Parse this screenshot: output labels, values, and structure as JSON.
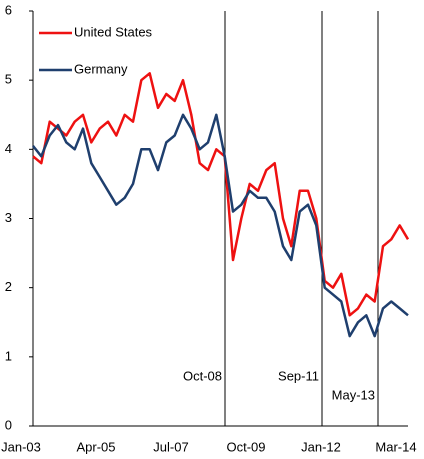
{
  "chart_data": {
    "type": "line",
    "categories": [
      "Jan-03",
      null,
      null,
      null,
      null,
      null,
      null,
      null,
      null,
      "Apr-05",
      null,
      null,
      null,
      null,
      null,
      null,
      null,
      null,
      "Jul-07",
      null,
      null,
      null,
      null,
      null,
      null,
      null,
      null,
      "Oct-09",
      null,
      null,
      null,
      null,
      null,
      null,
      null,
      null,
      "Jan-12",
      null,
      null,
      null,
      null,
      null,
      null,
      null,
      null,
      "Mar-14"
    ],
    "series": [
      {
        "name": "United States",
        "color": "#ee1111",
        "values": [
          3.9,
          3.8,
          4.4,
          4.3,
          4.2,
          4.4,
          4.5,
          4.1,
          4.3,
          4.4,
          4.2,
          4.5,
          4.4,
          5.0,
          5.1,
          4.6,
          4.8,
          4.7,
          5.0,
          4.5,
          3.8,
          3.7,
          4.0,
          3.9,
          2.4,
          3.0,
          3.5,
          3.4,
          3.7,
          3.8,
          3.0,
          2.6,
          3.4,
          3.4,
          3.0,
          2.1,
          2.0,
          2.2,
          1.6,
          1.7,
          1.9,
          1.8,
          2.6,
          2.7,
          2.9,
          2.7
        ]
      },
      {
        "name": "Germany",
        "color": "#1f3f6e",
        "values": [
          4.05,
          3.9,
          4.2,
          4.35,
          4.1,
          4.0,
          4.3,
          3.8,
          3.6,
          3.4,
          3.2,
          3.3,
          3.5,
          4.0,
          4.0,
          3.7,
          4.1,
          4.2,
          4.5,
          4.3,
          4.0,
          4.1,
          4.5,
          3.9,
          3.1,
          3.2,
          3.4,
          3.3,
          3.3,
          3.1,
          2.6,
          2.4,
          3.1,
          3.2,
          2.9,
          2.0,
          1.9,
          1.8,
          1.3,
          1.5,
          1.6,
          1.3,
          1.7,
          1.8,
          1.7,
          1.6
        ]
      }
    ],
    "annotations": [
      "Oct-08",
      "Sep-11",
      "May-13"
    ],
    "ylim": [
      0,
      6
    ],
    "yticks": [
      0,
      1,
      2,
      3,
      4,
      5,
      6
    ],
    "grid": false,
    "legend": "top-left"
  }
}
